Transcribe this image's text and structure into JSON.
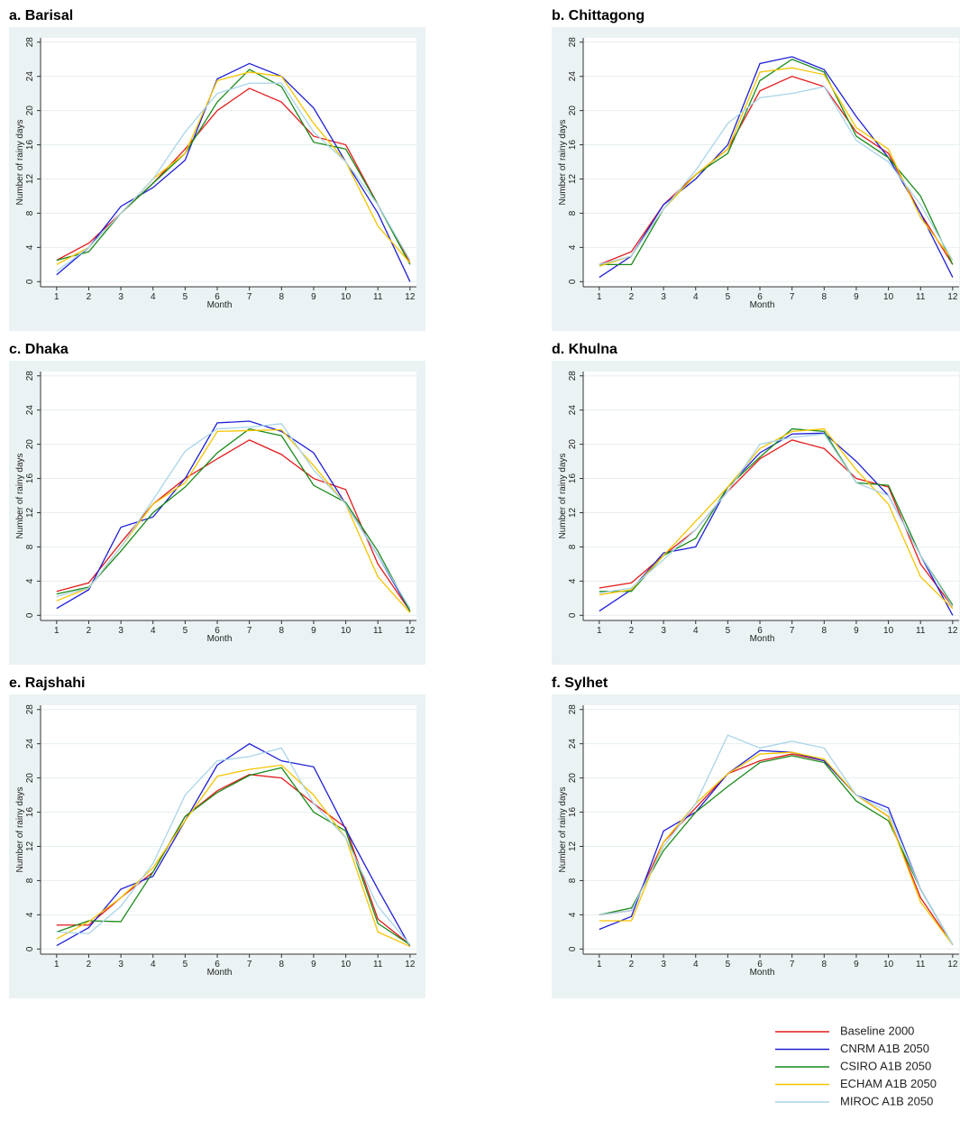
{
  "chart_data": [
    {
      "type": "line",
      "title": "a. Barisal",
      "x_label": "Month",
      "y_label": "Number of rainy days",
      "x": [
        1,
        2,
        3,
        4,
        5,
        6,
        7,
        8,
        9,
        10,
        11,
        12
      ],
      "xlim": [
        0.5,
        12.2
      ],
      "ylim": [
        -0.6,
        28.5
      ],
      "xticks": [
        1,
        2,
        3,
        4,
        5,
        6,
        7,
        8,
        9,
        10,
        11,
        12
      ],
      "yticks": [
        0,
        4,
        8,
        12,
        16,
        20,
        24,
        28
      ],
      "grid": true,
      "series": [
        {
          "values": [
            2.5,
            4.5,
            8,
            11.5,
            15.5,
            20,
            22.6,
            21,
            17,
            16,
            9,
            2.2
          ]
        },
        {
          "values": [
            0.8,
            4,
            8.8,
            11,
            14.2,
            23.7,
            25.5,
            24,
            20.3,
            14,
            8,
            0
          ]
        },
        {
          "values": [
            2.5,
            3.5,
            8,
            11.5,
            15,
            21,
            24.8,
            22.8,
            16.3,
            15.5,
            9,
            2
          ]
        },
        {
          "values": [
            2,
            4,
            8,
            12,
            15,
            23.5,
            24.5,
            24,
            18.5,
            14,
            6.5,
            2.2
          ]
        },
        {
          "values": [
            1.2,
            4,
            8,
            12,
            17.5,
            22,
            23.2,
            23.2,
            17.5,
            14,
            9,
            2.5
          ]
        }
      ]
    },
    {
      "type": "line",
      "title": "b. Chittagong",
      "x_label": "Month",
      "y_label": "Number of rainy days",
      "x": [
        1,
        2,
        3,
        4,
        5,
        6,
        7,
        8,
        9,
        10,
        11,
        12
      ],
      "xlim": [
        0.5,
        12.2
      ],
      "ylim": [
        -0.6,
        28.5
      ],
      "xticks": [
        1,
        2,
        3,
        4,
        5,
        6,
        7,
        8,
        9,
        10,
        11,
        12
      ],
      "yticks": [
        0,
        4,
        8,
        12,
        16,
        20,
        24,
        28
      ],
      "grid": true,
      "series": [
        {
          "values": [
            2,
            3.5,
            9,
            12.5,
            15.5,
            22.3,
            24,
            22.8,
            17.5,
            15,
            8,
            2
          ]
        },
        {
          "values": [
            0.5,
            3,
            9,
            12,
            16,
            25.5,
            26.3,
            24.8,
            19.3,
            14.5,
            8,
            0.5
          ]
        },
        {
          "values": [
            2,
            2,
            8.5,
            12.5,
            15,
            23.5,
            26,
            24.5,
            17,
            14.5,
            10,
            2
          ]
        },
        {
          "values": [
            1.8,
            3,
            8.5,
            12.5,
            15.5,
            24.5,
            25,
            24.2,
            18,
            15.5,
            7.5,
            2.5
          ]
        },
        {
          "values": [
            2,
            3,
            8.5,
            13,
            18.5,
            21.5,
            22,
            22.8,
            16.5,
            14,
            9,
            2.5
          ]
        }
      ]
    },
    {
      "type": "line",
      "title": "c. Dhaka",
      "x_label": "Month",
      "y_label": "Number of rainy days",
      "x": [
        1,
        2,
        3,
        4,
        5,
        6,
        7,
        8,
        9,
        10,
        11,
        12
      ],
      "xlim": [
        0.5,
        12.2
      ],
      "ylim": [
        -0.6,
        28.5
      ],
      "xticks": [
        1,
        2,
        3,
        4,
        5,
        6,
        7,
        8,
        9,
        10,
        11,
        12
      ],
      "yticks": [
        0,
        4,
        8,
        12,
        16,
        20,
        24,
        28
      ],
      "grid": true,
      "series": [
        {
          "values": [
            2.8,
            3.8,
            8.5,
            13,
            16,
            18.3,
            20.5,
            18.8,
            16,
            14.7,
            6,
            0.5
          ]
        },
        {
          "values": [
            0.8,
            3,
            10.3,
            11.5,
            16,
            22.5,
            22.7,
            21.5,
            19,
            13,
            7,
            0.5
          ]
        },
        {
          "values": [
            2.5,
            3.3,
            7.5,
            12,
            15,
            19,
            21.8,
            21,
            15.2,
            13.2,
            7.5,
            0.5
          ]
        },
        {
          "values": [
            1.7,
            3.2,
            8,
            13,
            15.5,
            21.5,
            21.6,
            21.7,
            17.5,
            13,
            4.5,
            0.3
          ]
        },
        {
          "values": [
            2.2,
            3.2,
            8,
            13.5,
            19.2,
            21.8,
            22,
            22.4,
            17,
            13,
            7,
            0.8
          ]
        }
      ]
    },
    {
      "type": "line",
      "title": "d. Khulna",
      "x_label": "Month",
      "y_label": "Number of rainy days",
      "x": [
        1,
        2,
        3,
        4,
        5,
        6,
        7,
        8,
        9,
        10,
        11,
        12
      ],
      "xlim": [
        0.5,
        12.2
      ],
      "ylim": [
        -0.6,
        28.5
      ],
      "xticks": [
        1,
        2,
        3,
        4,
        5,
        6,
        7,
        8,
        9,
        10,
        11,
        12
      ],
      "yticks": [
        0,
        4,
        8,
        12,
        16,
        20,
        24,
        28
      ],
      "grid": true,
      "series": [
        {
          "values": [
            3.2,
            3.8,
            7,
            10,
            14.5,
            18.3,
            20.5,
            19.5,
            16,
            15,
            6,
            1
          ]
        },
        {
          "values": [
            0.5,
            3,
            7.3,
            8,
            15,
            19,
            21.2,
            21.3,
            18,
            14,
            7,
            0
          ]
        },
        {
          "values": [
            2.8,
            2.8,
            7,
            9,
            15,
            18.5,
            21.8,
            21.5,
            15.5,
            15.2,
            7,
            1.2
          ]
        },
        {
          "values": [
            2.4,
            3,
            7,
            11,
            15,
            19.5,
            21.5,
            21.8,
            17,
            13,
            4.5,
            0.8
          ]
        },
        {
          "values": [
            2.6,
            3.2,
            6.5,
            10,
            14.5,
            20,
            20.8,
            21.2,
            15.5,
            14,
            7,
            1
          ]
        }
      ]
    },
    {
      "type": "line",
      "title": "e. Rajshahi",
      "x_label": "Month",
      "y_label": "Number of rainy days",
      "x": [
        1,
        2,
        3,
        4,
        5,
        6,
        7,
        8,
        9,
        10,
        11,
        12
      ],
      "xlim": [
        0.5,
        12.2
      ],
      "ylim": [
        -0.6,
        28.5
      ],
      "xticks": [
        1,
        2,
        3,
        4,
        5,
        6,
        7,
        8,
        9,
        10,
        11,
        12
      ],
      "yticks": [
        0,
        4,
        8,
        12,
        16,
        20,
        24,
        28
      ],
      "grid": true,
      "series": [
        {
          "values": [
            2.8,
            2.8,
            6,
            9,
            15.5,
            18.5,
            20.4,
            20,
            17,
            14.2,
            3.5,
            0.5
          ]
        },
        {
          "values": [
            0.4,
            2.5,
            7,
            8.5,
            15,
            21.5,
            24,
            22,
            21.3,
            14,
            7,
            0.3
          ]
        },
        {
          "values": [
            2,
            3.3,
            3.2,
            9,
            15.5,
            18.3,
            20.3,
            21.2,
            16,
            13.8,
            3,
            0.5
          ]
        },
        {
          "values": [
            1.2,
            3.2,
            6,
            9.5,
            15,
            20.2,
            21,
            21.5,
            18,
            13,
            2,
            0.3
          ]
        },
        {
          "values": [
            2,
            1.8,
            5,
            10,
            18,
            22,
            22.5,
            23.5,
            17,
            13,
            5,
            0.5
          ]
        }
      ]
    },
    {
      "type": "line",
      "title": "f. Sylhet",
      "x_label": "Month",
      "y_label": "Number of rainy days",
      "x": [
        1,
        2,
        3,
        4,
        5,
        6,
        7,
        8,
        9,
        10,
        11,
        12
      ],
      "xlim": [
        0.5,
        12.2
      ],
      "ylim": [
        -0.6,
        28.5
      ],
      "xticks": [
        1,
        2,
        3,
        4,
        5,
        6,
        7,
        8,
        9,
        10,
        11,
        12
      ],
      "yticks": [
        0,
        4,
        8,
        12,
        16,
        20,
        24,
        28
      ],
      "grid": true,
      "series": [
        {
          "values": [
            4,
            4.5,
            12.5,
            16.5,
            20.5,
            22,
            22.8,
            22,
            18,
            15.5,
            6,
            0.5
          ]
        },
        {
          "values": [
            2.3,
            3.8,
            13.8,
            16,
            20.5,
            23.2,
            23,
            22,
            18,
            16.5,
            7,
            0.5
          ]
        },
        {
          "values": [
            4,
            4.8,
            11.5,
            16,
            19,
            21.8,
            22.6,
            21.8,
            17.3,
            15,
            7,
            0.5
          ]
        },
        {
          "values": [
            3.3,
            3.3,
            12.5,
            17,
            20.5,
            22.8,
            23,
            22.2,
            18,
            15.5,
            5.5,
            0.5
          ]
        },
        {
          "values": [
            4,
            4.5,
            12,
            17,
            25,
            23.5,
            24.3,
            23.5,
            18,
            16,
            7,
            0.5
          ]
        }
      ]
    }
  ],
  "legend": [
    {
      "name": "Baseline 2000",
      "color": "#e41a1c"
    },
    {
      "name": "CNRM A1B 2050",
      "color": "#1f1fd6"
    },
    {
      "name": "CSIRO A1B 2050",
      "color": "#1a8a1a"
    },
    {
      "name": "ECHAM A1B 2050",
      "color": "#f5c400"
    },
    {
      "name": "MIROC A1B 2050",
      "color": "#a9d4e8"
    }
  ]
}
